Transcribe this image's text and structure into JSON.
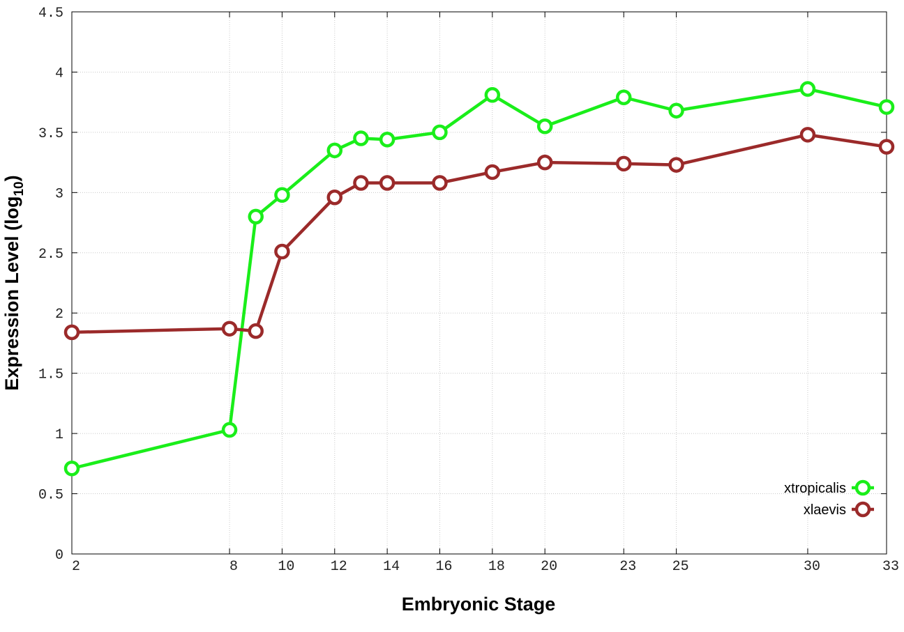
{
  "chart_data": {
    "type": "line",
    "xlabel": "Embryonic Stage",
    "ylabel_main": "Expression Level (log",
    "ylabel_sub": "10",
    "ylabel_close": ")",
    "x": [
      2,
      8,
      9,
      10,
      12,
      13,
      14,
      16,
      18,
      20,
      23,
      25,
      30,
      33
    ],
    "x_ticks": [
      "2",
      "8",
      "10",
      "12",
      "14",
      "16",
      "18",
      "20",
      "23",
      "25",
      "30",
      "33"
    ],
    "x_tick_values": [
      2,
      8,
      10,
      12,
      14,
      16,
      18,
      20,
      23,
      25,
      30,
      33
    ],
    "y_ticks": [
      "0",
      "0.5",
      "1",
      "1.5",
      "2",
      "2.5",
      "3",
      "3.5",
      "4",
      "4.5"
    ],
    "y_tick_values": [
      0,
      0.5,
      1,
      1.5,
      2,
      2.5,
      3,
      3.5,
      4,
      4.5
    ],
    "xlim": [
      2,
      33
    ],
    "ylim": [
      0,
      4.5
    ],
    "grid": true,
    "legend_position": "bottom-right",
    "series": [
      {
        "name": "xtropicalis",
        "color": "#1aee1a",
        "values": [
          0.71,
          1.03,
          2.8,
          2.98,
          3.35,
          3.45,
          3.44,
          3.5,
          3.81,
          3.55,
          3.79,
          3.68,
          3.86,
          3.71
        ]
      },
      {
        "name": "xlaevis",
        "color": "#9b2a2a",
        "values": [
          1.84,
          1.87,
          1.85,
          2.51,
          2.96,
          3.08,
          3.08,
          3.08,
          3.17,
          3.25,
          3.24,
          3.23,
          3.48,
          3.38
        ]
      }
    ]
  }
}
